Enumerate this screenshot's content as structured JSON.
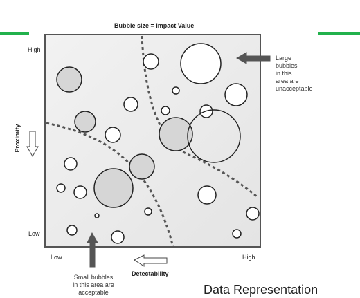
{
  "title": "Bubble size = Impact Value",
  "y_axis": {
    "label": "Proximity",
    "high": "High",
    "low": "Low"
  },
  "x_axis": {
    "label": "Detectability",
    "low": "Low",
    "high": "High"
  },
  "annotations": {
    "large_bubbles": [
      "Large",
      "bubbles",
      "in this",
      "area are",
      "unacceptable"
    ],
    "small_bubbles": [
      "Small bubbles",
      "in this area are",
      "acceptable"
    ]
  },
  "caption": "Data Representation",
  "colors": {
    "accent": "#22b14c",
    "plot_bg": "#ededed",
    "bubble_stroke": "#222222",
    "arrow": "#555555",
    "bubble_fill": "#ffffff",
    "bubble_fill_dark": "#d6d6d6"
  },
  "icons": {
    "up_arrow": "up-arrow-icon",
    "left_arrow": "left-arrow-icon",
    "down_outline_arrow": "down-arrow-outline-icon",
    "left_outline_arrow": "left-arrow-outline-icon"
  }
}
